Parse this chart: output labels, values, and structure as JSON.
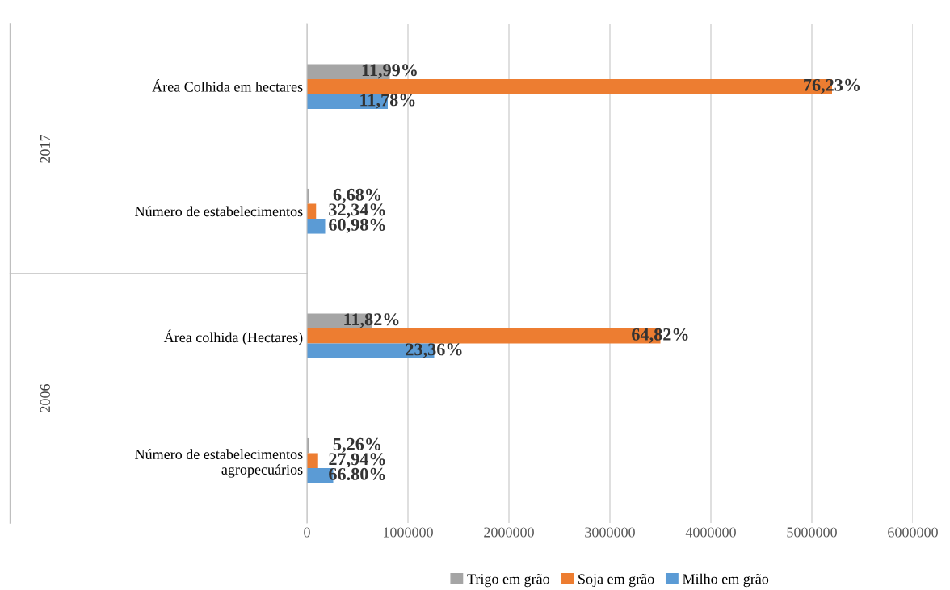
{
  "chart_data": {
    "type": "bar",
    "orientation": "horizontal",
    "categories": [
      "Área Colhida em hectares",
      "Número de estabelecimentos",
      "Área colhida (Hectares)",
      "Número de estabelecimentos\nagropecuários"
    ],
    "annotations": [
      "2017",
      "2006",
      "11,99%",
      "76,23%",
      "11,78%",
      "6,68%",
      "32,34%",
      "60,98%",
      "11,82%",
      "64,82%",
      "23,36%",
      "5,26%",
      "27,94%",
      "66.80%"
    ],
    "series": [
      {
        "name": "Trigo em grão",
        "color": "#a5a5a5",
        "values": [
          820000,
          20000,
          640000,
          20000
        ]
      },
      {
        "name": "Soja em grão",
        "color": "#ed7d31",
        "values": [
          5200000,
          90000,
          3500000,
          110000
        ]
      },
      {
        "name": "Milho em grão",
        "color": "#5b9bd5",
        "values": [
          800000,
          180000,
          1260000,
          260000
        ]
      }
    ],
    "xlim": [
      0,
      6000000
    ],
    "xticks": [
      0,
      1000000,
      2000000,
      3000000,
      4000000,
      5000000,
      6000000
    ],
    "grid": "x",
    "legend": "bottom"
  }
}
